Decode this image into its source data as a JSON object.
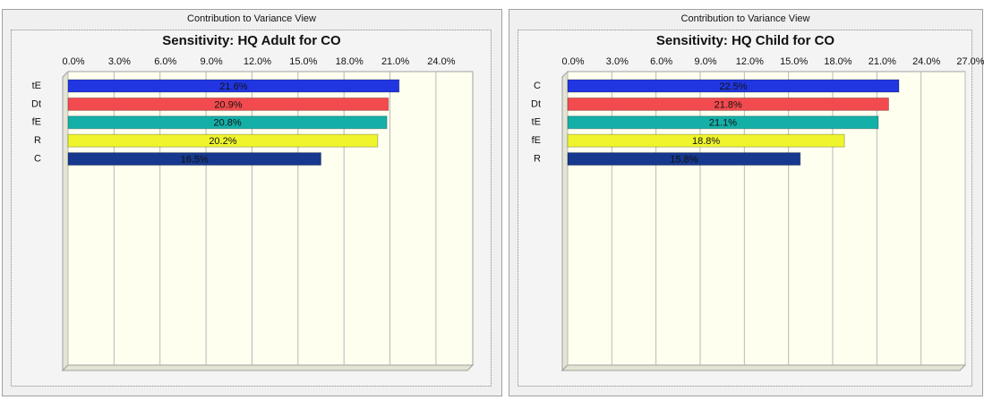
{
  "chart_data": [
    {
      "type": "bar",
      "panel_title": "Contribution to Variance View",
      "title": "Sensitivity: HQ Adult for CO",
      "categories": [
        "tE",
        "Dt",
        "fE",
        "R",
        "C"
      ],
      "values": [
        21.6,
        20.9,
        20.8,
        20.2,
        16.5
      ],
      "value_labels": [
        "21.6%",
        "20.9%",
        "20.8%",
        "20.2%",
        "16.5%"
      ],
      "colors": [
        "#2136e0",
        "#f24a4e",
        "#14b0a8",
        "#eef52c",
        "#16388e"
      ],
      "xlim": [
        0,
        26.4
      ],
      "xticks": [
        {
          "value": 0,
          "label": "0.0%"
        },
        {
          "value": 3,
          "label": "3.0%"
        },
        {
          "value": 6,
          "label": "6.0%"
        },
        {
          "value": 9,
          "label": "9.0%"
        },
        {
          "value": 12,
          "label": "12.0%"
        },
        {
          "value": 15,
          "label": "15.0%"
        },
        {
          "value": 18,
          "label": "18.0%"
        },
        {
          "value": 21,
          "label": "21.0%"
        },
        {
          "value": 24,
          "label": "24.0%"
        }
      ],
      "grid": true
    },
    {
      "type": "bar",
      "panel_title": "Contribution to Variance View",
      "title": "Sensitivity: HQ Child for CO",
      "categories": [
        "C",
        "Dt",
        "tE",
        "fE",
        "R"
      ],
      "values": [
        22.5,
        21.8,
        21.1,
        18.8,
        15.8
      ],
      "value_labels": [
        "22.5%",
        "21.8%",
        "21.1%",
        "18.8%",
        "15.8%"
      ],
      "colors": [
        "#2136e0",
        "#f24a4e",
        "#14b0a8",
        "#eef52c",
        "#16388e"
      ],
      "xlim": [
        0,
        27
      ],
      "xticks": [
        {
          "value": 0,
          "label": "0.0%"
        },
        {
          "value": 3,
          "label": "3.0%"
        },
        {
          "value": 6,
          "label": "6.0%"
        },
        {
          "value": 9,
          "label": "9.0%"
        },
        {
          "value": 12,
          "label": "12.0%"
        },
        {
          "value": 15,
          "label": "15.0%"
        },
        {
          "value": 18,
          "label": "18.0%"
        },
        {
          "value": 21,
          "label": "21.0%"
        },
        {
          "value": 24,
          "label": "24.0%"
        },
        {
          "value": 27,
          "label": "27.0%"
        }
      ],
      "grid": true
    }
  ]
}
